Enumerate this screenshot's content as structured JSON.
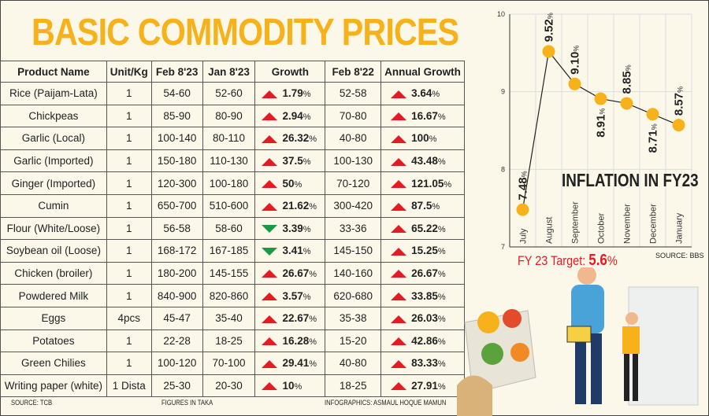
{
  "title": "BASIC COMMODITY PRICES",
  "table": {
    "headers": [
      "Product Name",
      "Unit/Kg",
      "Feb 8'23",
      "Jan 8'23",
      "Growth",
      "Feb 8'22",
      "Annual Growth"
    ],
    "rows": [
      [
        "Rice (Paijam-Lata)",
        "1",
        "54-60",
        "52-60",
        "up",
        "1.79",
        "52-58",
        "3.64"
      ],
      [
        "Chickpeas",
        "1",
        "85-90",
        "80-90",
        "up",
        "2.94",
        "70-80",
        "16.67"
      ],
      [
        "Garlic (Local)",
        "1",
        "100-140",
        "80-110",
        "up",
        "26.32",
        "40-80",
        "100"
      ],
      [
        "Garlic (Imported)",
        "1",
        "150-180",
        "110-130",
        "up",
        "37.5",
        "100-130",
        "43.48"
      ],
      [
        "Ginger (Imported)",
        "1",
        "120-300",
        "100-180",
        "up",
        "50",
        "70-120",
        "121.05"
      ],
      [
        "Cumin",
        "1",
        "650-700",
        "510-600",
        "up",
        "21.62",
        "300-420",
        "87.5"
      ],
      [
        "Flour (White/Loose)",
        "1",
        "56-58",
        "58-60",
        "down",
        "3.39",
        "33-36",
        "65.22"
      ],
      [
        "Soybean oil (Loose)",
        "1",
        "168-172",
        "167-185",
        "down",
        "3.41",
        "145-150",
        "15.25"
      ],
      [
        "Chicken (broiler)",
        "1",
        "180-200",
        "145-155",
        "up",
        "26.67",
        "140-160",
        "26.67"
      ],
      [
        "Powdered Milk",
        "1",
        "840-900",
        "820-860",
        "up",
        "3.57",
        "620-680",
        "33.85"
      ],
      [
        "Eggs",
        "4pcs",
        "45-47",
        "35-40",
        "up",
        "22.67",
        "35-38",
        "26.03"
      ],
      [
        "Potatoes",
        "1",
        "22-28",
        "18-25",
        "up",
        "16.28",
        "15-20",
        "42.86"
      ],
      [
        "Green Chilies",
        "1",
        "100-120",
        "70-100",
        "up",
        "29.41",
        "40-80",
        "83.33"
      ],
      [
        "Writing paper (white)",
        "1 Dista",
        "25-30",
        "20-30",
        "up",
        "10",
        "18-25",
        "27.91"
      ]
    ],
    "pct_sign": "%"
  },
  "footer": {
    "source": "SOURCE: TCB",
    "units": "FIGURES IN TAKA",
    "credit": "INFOGRAPHICS: ASMAUL HOQUE MAMUN"
  },
  "chart_data": {
    "type": "line",
    "title": "INFLATION IN FY23",
    "categories": [
      "July",
      "August",
      "September",
      "October",
      "November",
      "December",
      "January"
    ],
    "values": [
      7.48,
      9.52,
      9.1,
      8.91,
      8.85,
      8.71,
      8.57
    ],
    "data_labels": [
      "7.48",
      "9.52",
      "9.10",
      "8.91",
      "8.85",
      "8.71",
      "8.57"
    ],
    "ylim": [
      7,
      10
    ],
    "yticks": [
      "7",
      "8",
      "9",
      "10"
    ],
    "grid": true,
    "source": "SOURCE: BBS",
    "marker_color": "#f7b21b"
  },
  "target": {
    "label": "FY 23 Target: ",
    "value": "5.6",
    "sign": "%"
  },
  "colors": {
    "title": "#f7b21b",
    "up": "#e31b23",
    "down": "#1a9a48"
  }
}
